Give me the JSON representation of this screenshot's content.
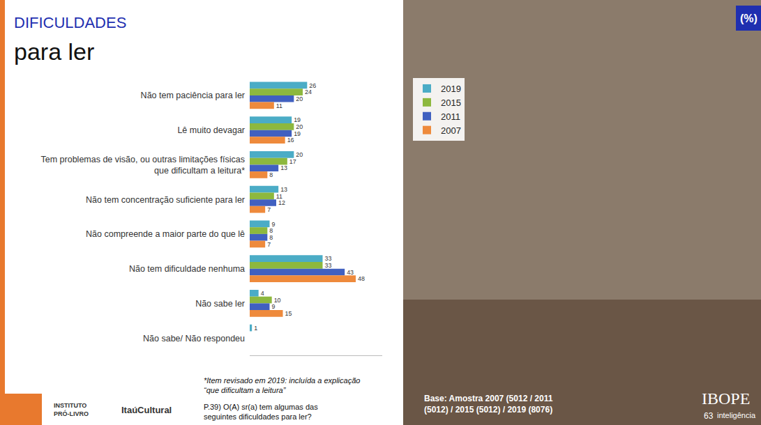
{
  "slide": {
    "title": "DIFICULDADES",
    "subtitle": "para ler",
    "unit_badge": "(%)",
    "footnote": "*Item revisado em 2019: incluída a explicação “que dificultam a leitura”",
    "question": "P.39) O(A) sr(a) tem algumas das seguintes dificuldades para ler?",
    "base": "Base: Amostra 2007 (5012 / 2011 (5012) / 2015 (5012) / 2019 (8076)",
    "logo_left": "INSTITUTO PRÓ-LIVRO",
    "logo_middle": "ItaúCultural",
    "logo_right": "IBOPE",
    "logo_right_sub": "inteligência",
    "page_number": "63"
  },
  "chart_data": {
    "type": "bar",
    "orientation": "horizontal",
    "categories": [
      "Não tem paciência para ler",
      "Lê muito devagar",
      "Tem problemas de visão, ou outras limitações físicas que dificultam a leitura*",
      "Não tem concentração suficiente para ler",
      "Não compreende a maior parte do que lê",
      "Não tem dificuldade nenhuma",
      "Não sabe ler",
      "Não sabe/ Não respondeu"
    ],
    "series": [
      {
        "name": "2019",
        "color": "#4bacc6",
        "values": [
          26,
          19,
          20,
          13,
          9,
          33,
          4,
          1
        ]
      },
      {
        "name": "2015",
        "color": "#8db83e",
        "values": [
          24,
          20,
          17,
          11,
          8,
          33,
          10,
          null
        ]
      },
      {
        "name": "2011",
        "color": "#4060c0",
        "values": [
          20,
          19,
          13,
          12,
          8,
          43,
          9,
          null
        ]
      },
      {
        "name": "2007",
        "color": "#ee8a3c",
        "values": [
          11,
          16,
          8,
          7,
          7,
          48,
          15,
          null
        ]
      }
    ],
    "xlim": [
      0,
      60
    ],
    "xticks": [],
    "tick_labels": "y",
    "grid": false,
    "data_labels": true,
    "legend": "right"
  }
}
